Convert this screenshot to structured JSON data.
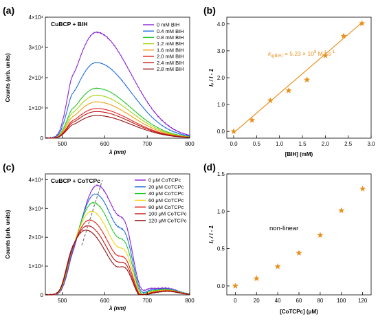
{
  "chart_data": [
    {
      "panel": "(a)",
      "type": "line",
      "title": "CuBCP + BIH",
      "xlabel": "λ (nm)",
      "ylabel": "Counts (arb. units)",
      "xlim": [
        460,
        800
      ],
      "ylim": [
        0,
        40000
      ],
      "xticks": [
        "500",
        "600",
        "700",
        "800"
      ],
      "xtick_values": [
        500,
        600,
        700,
        800
      ],
      "yticks": [
        "0",
        "1×10⁴",
        "2×10⁴",
        "3×10⁴",
        "4×10⁴"
      ],
      "ytick_values": [
        0,
        10000,
        20000,
        30000,
        40000
      ],
      "legend_position": "top-right",
      "series": [
        {
          "name": "0 mM BIH",
          "color": "#8a1fd6",
          "peak": 35000
        },
        {
          "name": "0.4 mM BIH",
          "color": "#1f6fe0",
          "peak": 25000
        },
        {
          "name": "0.8 mM BIH",
          "color": "#22c828",
          "peak": 16500
        },
        {
          "name": "1.2 mM BIH",
          "color": "#a6d60f",
          "peak": 14200
        },
        {
          "name": "1.6 mM BIH",
          "color": "#f2a114",
          "peak": 12000
        },
        {
          "name": "2.0 mM BIH",
          "color": "#e4231b",
          "peak": 9800
        },
        {
          "name": "2.4 mM BIH",
          "color": "#c41616",
          "peak": 8800
        },
        {
          "name": "2.8 mM BIH",
          "color": "#901010",
          "peak": 7500
        }
      ]
    },
    {
      "panel": "(b)",
      "type": "scatter",
      "xlabel": "[BIH] (mM)",
      "ylabel": "I₀ / I - 1",
      "xlim": [
        -0.15,
        3.0
      ],
      "ylim": [
        -0.25,
        4.25
      ],
      "xticks": [
        "0.0",
        "0.5",
        "1.0",
        "1.5",
        "2.0",
        "2.5",
        "3.0"
      ],
      "xtick_values": [
        0.0,
        0.5,
        1.0,
        1.5,
        2.0,
        2.5,
        3.0
      ],
      "yticks": [
        "0.0",
        "1.0",
        "2.0",
        "3.0",
        "4.0"
      ],
      "ytick_values": [
        0.0,
        1.0,
        2.0,
        3.0,
        4.0
      ],
      "x": [
        0.0,
        0.4,
        0.8,
        1.2,
        1.6,
        2.0,
        2.4,
        2.8
      ],
      "y": [
        0.0,
        0.42,
        1.15,
        1.52,
        1.92,
        2.82,
        3.55,
        4.02
      ],
      "fit": {
        "x": [
          0.0,
          2.8
        ],
        "y": [
          -0.05,
          4.05
        ]
      },
      "annotation": "k_q(BIH) = 5.23 × 10⁹ M⁻¹ s⁻¹",
      "annotation_parts": {
        "k": "k",
        "sub": "q(BIH)",
        "rest": " = 5.23 × 10",
        "exp1": "9",
        "units": " M",
        "exp2": "-1",
        "units2": " s",
        "exp3": "-1"
      },
      "color": "#e8901c"
    },
    {
      "panel": "(c)",
      "type": "line",
      "title": "CuBCP + CoTCPc",
      "xlabel": "λ (nm)",
      "ylabel": "Counts (arb. units)",
      "xlim": [
        460,
        800
      ],
      "ylim": [
        0,
        42000
      ],
      "xticks": [
        "500",
        "600",
        "700",
        "800"
      ],
      "xtick_values": [
        500,
        600,
        700,
        800
      ],
      "yticks": [
        "0",
        "1×10⁴",
        "2×10⁴",
        "3×10⁴",
        "4×10⁴"
      ],
      "ytick_values": [
        0,
        10000,
        20000,
        30000,
        40000
      ],
      "legend_position": "top-right",
      "series": [
        {
          "name": "0 μM CoTCPc",
          "color": "#8a1fd6",
          "peak": 38000
        },
        {
          "name": "20 μM CoTCPc",
          "color": "#1f6fe0",
          "peak": 35000
        },
        {
          "name": "40 μM CoTCPc",
          "color": "#22c828",
          "peak": 32000
        },
        {
          "name": "60 μM CoTCPc",
          "color": "#f2d614",
          "peak": 29000
        },
        {
          "name": "80 μM CoTCPc",
          "color": "#e4231b",
          "peak": 26000
        },
        {
          "name": "100 μM CoTCPc",
          "color": "#c41616",
          "peak": 24000
        },
        {
          "name": "120 μM CoTCPc",
          "color": "#901010",
          "peak": 22500
        }
      ]
    },
    {
      "panel": "(d)",
      "type": "scatter",
      "xlabel": "[CoTCPc] (μM)",
      "ylabel": "I₀ / I - 1",
      "xlim": [
        -8,
        128
      ],
      "ylim": [
        -0.12,
        1.5
      ],
      "xticks": [
        "0",
        "20",
        "40",
        "60",
        "80",
        "100",
        "120"
      ],
      "xtick_values": [
        0,
        20,
        40,
        60,
        80,
        100,
        120
      ],
      "yticks": [
        "0.0",
        "0.5",
        "1.0",
        "1.5"
      ],
      "ytick_values": [
        0.0,
        0.5,
        1.0,
        1.5
      ],
      "x": [
        0,
        20,
        40,
        60,
        80,
        100,
        120
      ],
      "y": [
        0.0,
        0.1,
        0.26,
        0.44,
        0.68,
        1.01,
        1.3
      ],
      "annotation": "non-linear",
      "color": "#e8901c"
    }
  ]
}
